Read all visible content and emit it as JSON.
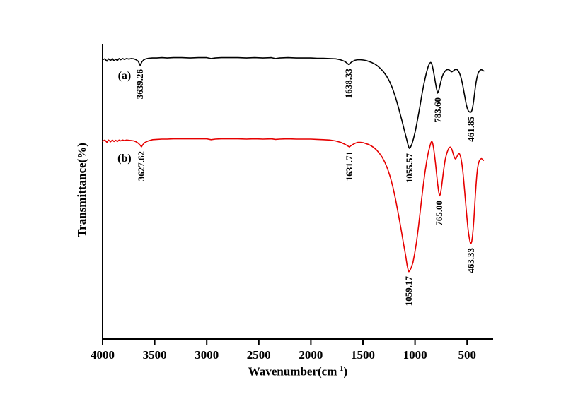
{
  "figure": {
    "background": "#ffffff",
    "x_axis": {
      "title_pre": "Wavenumber(cm",
      "title_sup": "-1",
      "title_post": ")",
      "ticks": [
        "4000",
        "3500",
        "3000",
        "2500",
        "2000",
        "1500",
        "1000",
        "500"
      ],
      "tick_values": [
        4000,
        3500,
        3000,
        2500,
        2000,
        1500,
        1000,
        500
      ],
      "range": [
        4000,
        250
      ]
    },
    "y_axis": {
      "title": "Transmittance(%)",
      "range": [
        0,
        100
      ],
      "tick_labels_visible": false
    }
  },
  "chart_data": {
    "type": "line",
    "title": "",
    "xlabel": "Wavenumber(cm-1)",
    "ylabel": "Transmittance(%)",
    "x_axis_reversed": true,
    "grid": false,
    "xlim": [
      4000,
      250
    ],
    "ylim": [
      0,
      100
    ],
    "axis_notes": "FTIR spectra; y-axis has no tick labels; x-axis reversed wavenumber scale",
    "series": [
      {
        "name": "(a)",
        "color": "#000000",
        "label_pos": {
          "x": 3790,
          "y": 88.5
        },
        "peaks": [
          {
            "text": "3639.26",
            "x": 3640,
            "y": 92.6
          },
          {
            "text": "1638.33",
            "x": 1638,
            "y": 92.9
          },
          {
            "text": "1055.57",
            "x": 1055,
            "y": 64.2
          },
          {
            "text": "783.60",
            "x": 783,
            "y": 83.0
          },
          {
            "text": "461.85",
            "x": 461,
            "y": 76.6
          }
        ],
        "points": [
          [
            4000,
            94.6
          ],
          [
            3978,
            94.9
          ],
          [
            3958,
            94.1
          ],
          [
            3942,
            94.9
          ],
          [
            3924,
            94.3
          ],
          [
            3906,
            95.0
          ],
          [
            3890,
            94.2
          ],
          [
            3874,
            94.8
          ],
          [
            3858,
            94.3
          ],
          [
            3842,
            95.0
          ],
          [
            3826,
            94.6
          ],
          [
            3808,
            95.0
          ],
          [
            3790,
            94.7
          ],
          [
            3770,
            95.0
          ],
          [
            3748,
            94.8
          ],
          [
            3724,
            95.0
          ],
          [
            3700,
            94.9
          ],
          [
            3678,
            94.6
          ],
          [
            3658,
            94.1
          ],
          [
            3639,
            92.7
          ],
          [
            3622,
            93.9
          ],
          [
            3604,
            94.6
          ],
          [
            3584,
            94.9
          ],
          [
            3558,
            95.1
          ],
          [
            3524,
            95.2
          ],
          [
            3480,
            95.2
          ],
          [
            3430,
            95.3
          ],
          [
            3380,
            95.2
          ],
          [
            3320,
            95.3
          ],
          [
            3240,
            95.3
          ],
          [
            3160,
            95.2
          ],
          [
            3080,
            95.3
          ],
          [
            3000,
            95.3
          ],
          [
            2958,
            95.0
          ],
          [
            2918,
            95.2
          ],
          [
            2860,
            95.3
          ],
          [
            2780,
            95.3
          ],
          [
            2700,
            95.3
          ],
          [
            2620,
            95.2
          ],
          [
            2540,
            95.3
          ],
          [
            2460,
            95.2
          ],
          [
            2380,
            95.3
          ],
          [
            2340,
            95.0
          ],
          [
            2300,
            95.2
          ],
          [
            2220,
            95.3
          ],
          [
            2140,
            95.2
          ],
          [
            2060,
            95.2
          ],
          [
            2000,
            95.2
          ],
          [
            1940,
            95.1
          ],
          [
            1880,
            95.1
          ],
          [
            1820,
            95.0
          ],
          [
            1760,
            94.9
          ],
          [
            1716,
            94.6
          ],
          [
            1672,
            94.0
          ],
          [
            1638,
            93.0
          ],
          [
            1606,
            93.9
          ],
          [
            1578,
            94.4
          ],
          [
            1552,
            94.6
          ],
          [
            1524,
            94.6
          ],
          [
            1496,
            94.5
          ],
          [
            1468,
            94.3
          ],
          [
            1440,
            94.0
          ],
          [
            1412,
            93.6
          ],
          [
            1384,
            93.1
          ],
          [
            1356,
            92.4
          ],
          [
            1328,
            91.5
          ],
          [
            1300,
            90.4
          ],
          [
            1272,
            89.0
          ],
          [
            1244,
            87.2
          ],
          [
            1216,
            84.9
          ],
          [
            1188,
            82.0
          ],
          [
            1160,
            78.6
          ],
          [
            1132,
            74.8
          ],
          [
            1104,
            70.9
          ],
          [
            1082,
            67.9
          ],
          [
            1066,
            65.6
          ],
          [
            1055,
            64.6
          ],
          [
            1044,
            64.9
          ],
          [
            1030,
            66.0
          ],
          [
            1014,
            67.9
          ],
          [
            996,
            70.6
          ],
          [
            976,
            74.2
          ],
          [
            954,
            78.6
          ],
          [
            932,
            83.2
          ],
          [
            912,
            86.9
          ],
          [
            892,
            90.0
          ],
          [
            874,
            92.2
          ],
          [
            860,
            93.4
          ],
          [
            850,
            93.7
          ],
          [
            842,
            93.4
          ],
          [
            834,
            92.6
          ],
          [
            824,
            90.9
          ],
          [
            814,
            88.9
          ],
          [
            804,
            86.8
          ],
          [
            794,
            84.9
          ],
          [
            783,
            83.3
          ],
          [
            773,
            84.0
          ],
          [
            762,
            85.7
          ],
          [
            751,
            87.4
          ],
          [
            740,
            88.8
          ],
          [
            729,
            89.8
          ],
          [
            718,
            90.4
          ],
          [
            707,
            90.9
          ],
          [
            696,
            91.2
          ],
          [
            685,
            91.3
          ],
          [
            674,
            91.2
          ],
          [
            663,
            90.9
          ],
          [
            652,
            90.5
          ],
          [
            641,
            90.6
          ],
          [
            630,
            90.9
          ],
          [
            619,
            91.2
          ],
          [
            608,
            91.4
          ],
          [
            597,
            91.3
          ],
          [
            586,
            90.9
          ],
          [
            575,
            90.2
          ],
          [
            564,
            89.2
          ],
          [
            553,
            87.8
          ],
          [
            542,
            86.0
          ],
          [
            531,
            83.9
          ],
          [
            520,
            81.7
          ],
          [
            509,
            79.6
          ],
          [
            498,
            78.1
          ],
          [
            487,
            77.2
          ],
          [
            476,
            76.9
          ],
          [
            468,
            76.8
          ],
          [
            461,
            76.9
          ],
          [
            453,
            77.5
          ],
          [
            445,
            78.8
          ],
          [
            437,
            80.7
          ],
          [
            429,
            83.0
          ],
          [
            421,
            85.2
          ],
          [
            413,
            87.1
          ],
          [
            405,
            88.6
          ],
          [
            397,
            89.7
          ],
          [
            389,
            90.4
          ],
          [
            379,
            90.9
          ],
          [
            369,
            91.2
          ],
          [
            359,
            91.2
          ],
          [
            349,
            91.0
          ],
          [
            339,
            90.8
          ]
        ]
      },
      {
        "name": "(b)",
        "color": "#e60000",
        "label_pos": {
          "x": 3790,
          "y": 60.5
        },
        "peaks": [
          {
            "text": "3627.62",
            "x": 3627,
            "y": 64.8
          },
          {
            "text": "1631.71",
            "x": 1631,
            "y": 64.8
          },
          {
            "text": "1059.17",
            "x": 1059,
            "y": 22.6
          },
          {
            "text": "765.00",
            "x": 765,
            "y": 48.2
          },
          {
            "text": "463.33",
            "x": 463,
            "y": 32.0
          }
        ],
        "points": [
          [
            4000,
            67.0
          ],
          [
            3978,
            67.4
          ],
          [
            3958,
            66.6
          ],
          [
            3942,
            67.4
          ],
          [
            3924,
            66.8
          ],
          [
            3906,
            67.4
          ],
          [
            3890,
            66.9
          ],
          [
            3874,
            67.3
          ],
          [
            3858,
            66.9
          ],
          [
            3842,
            67.4
          ],
          [
            3826,
            67.1
          ],
          [
            3808,
            67.4
          ],
          [
            3790,
            67.2
          ],
          [
            3770,
            67.4
          ],
          [
            3748,
            67.3
          ],
          [
            3724,
            67.2
          ],
          [
            3700,
            67.1
          ],
          [
            3678,
            66.8
          ],
          [
            3656,
            66.3
          ],
          [
            3640,
            65.7
          ],
          [
            3627,
            65.1
          ],
          [
            3612,
            65.9
          ],
          [
            3596,
            66.5
          ],
          [
            3576,
            66.9
          ],
          [
            3552,
            67.2
          ],
          [
            3520,
            67.5
          ],
          [
            3480,
            67.6
          ],
          [
            3430,
            67.7
          ],
          [
            3380,
            67.7
          ],
          [
            3320,
            67.8
          ],
          [
            3240,
            67.8
          ],
          [
            3160,
            67.8
          ],
          [
            3080,
            67.8
          ],
          [
            3000,
            67.8
          ],
          [
            2958,
            67.5
          ],
          [
            2918,
            67.7
          ],
          [
            2860,
            67.8
          ],
          [
            2780,
            67.8
          ],
          [
            2700,
            67.8
          ],
          [
            2620,
            67.7
          ],
          [
            2540,
            67.8
          ],
          [
            2460,
            67.7
          ],
          [
            2380,
            67.8
          ],
          [
            2340,
            67.6
          ],
          [
            2300,
            67.7
          ],
          [
            2220,
            67.8
          ],
          [
            2140,
            67.7
          ],
          [
            2060,
            67.7
          ],
          [
            2000,
            67.7
          ],
          [
            1940,
            67.6
          ],
          [
            1880,
            67.5
          ],
          [
            1820,
            67.4
          ],
          [
            1764,
            67.1
          ],
          [
            1712,
            66.6
          ],
          [
            1670,
            65.9
          ],
          [
            1631,
            65.1
          ],
          [
            1602,
            65.8
          ],
          [
            1576,
            66.3
          ],
          [
            1550,
            66.6
          ],
          [
            1524,
            66.6
          ],
          [
            1498,
            66.5
          ],
          [
            1472,
            66.2
          ],
          [
            1446,
            65.9
          ],
          [
            1420,
            65.4
          ],
          [
            1394,
            64.8
          ],
          [
            1368,
            64.0
          ],
          [
            1342,
            62.9
          ],
          [
            1316,
            61.6
          ],
          [
            1290,
            59.9
          ],
          [
            1264,
            57.7
          ],
          [
            1238,
            54.9
          ],
          [
            1212,
            51.4
          ],
          [
            1186,
            47.2
          ],
          [
            1160,
            42.4
          ],
          [
            1134,
            37.2
          ],
          [
            1110,
            32.2
          ],
          [
            1090,
            28.2
          ],
          [
            1076,
            25.0
          ],
          [
            1066,
            23.4
          ],
          [
            1059,
            22.8
          ],
          [
            1050,
            23.1
          ],
          [
            1036,
            24.2
          ],
          [
            1020,
            25.9
          ],
          [
            1004,
            28.8
          ],
          [
            986,
            32.8
          ],
          [
            966,
            38.2
          ],
          [
            946,
            44.4
          ],
          [
            926,
            50.6
          ],
          [
            906,
            56.0
          ],
          [
            888,
            60.2
          ],
          [
            872,
            63.2
          ],
          [
            858,
            65.2
          ],
          [
            847,
            66.5
          ],
          [
            839,
            67.0
          ],
          [
            831,
            66.4
          ],
          [
            823,
            64.9
          ],
          [
            813,
            62.5
          ],
          [
            803,
            59.4
          ],
          [
            793,
            55.9
          ],
          [
            783,
            52.7
          ],
          [
            774,
            50.1
          ],
          [
            765,
            48.5
          ],
          [
            757,
            49.0
          ],
          [
            749,
            50.5
          ],
          [
            741,
            52.6
          ],
          [
            733,
            55.0
          ],
          [
            725,
            57.3
          ],
          [
            717,
            59.3
          ],
          [
            709,
            60.9
          ],
          [
            701,
            62.1
          ],
          [
            693,
            63.1
          ],
          [
            685,
            63.9
          ],
          [
            677,
            64.5
          ],
          [
            669,
            64.9
          ],
          [
            661,
            65.0
          ],
          [
            653,
            64.7
          ],
          [
            645,
            64.1
          ],
          [
            637,
            63.2
          ],
          [
            629,
            62.2
          ],
          [
            621,
            61.4
          ],
          [
            613,
            61.0
          ],
          [
            605,
            61.2
          ],
          [
            597,
            61.8
          ],
          [
            589,
            62.4
          ],
          [
            581,
            62.8
          ],
          [
            573,
            62.7
          ],
          [
            565,
            62.1
          ],
          [
            557,
            60.9
          ],
          [
            549,
            59.1
          ],
          [
            541,
            56.8
          ],
          [
            533,
            54.0
          ],
          [
            525,
            50.8
          ],
          [
            517,
            47.4
          ],
          [
            509,
            44.0
          ],
          [
            501,
            40.8
          ],
          [
            493,
            38.0
          ],
          [
            485,
            35.6
          ],
          [
            477,
            33.8
          ],
          [
            470,
            32.7
          ],
          [
            463,
            32.3
          ],
          [
            456,
            32.9
          ],
          [
            449,
            34.5
          ],
          [
            442,
            37.1
          ],
          [
            435,
            40.5
          ],
          [
            428,
            44.4
          ],
          [
            421,
            48.5
          ],
          [
            414,
            52.3
          ],
          [
            407,
            55.4
          ],
          [
            400,
            57.7
          ],
          [
            392,
            59.3
          ],
          [
            383,
            60.3
          ],
          [
            373,
            60.9
          ],
          [
            363,
            61.1
          ],
          [
            353,
            60.9
          ],
          [
            343,
            60.5
          ]
        ]
      }
    ]
  }
}
